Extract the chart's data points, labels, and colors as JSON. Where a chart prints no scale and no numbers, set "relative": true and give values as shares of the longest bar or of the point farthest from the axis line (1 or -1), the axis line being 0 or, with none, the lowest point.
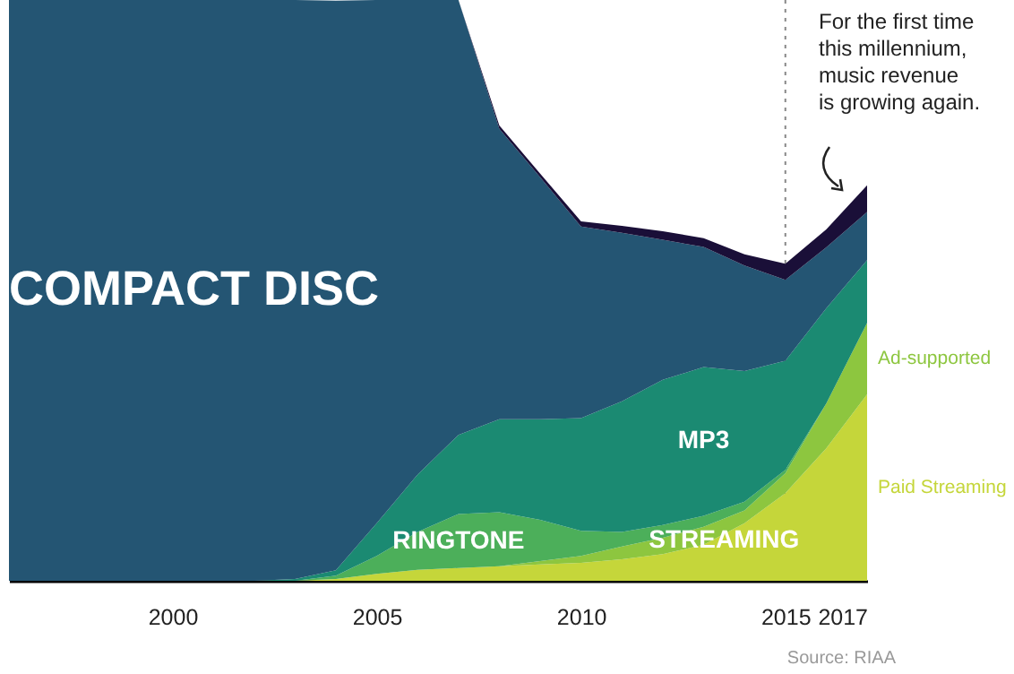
{
  "chart_data": {
    "type": "area",
    "stacked": true,
    "relative": true,
    "x": [
      1996,
      1997,
      1998,
      1999,
      2000,
      2001,
      2002,
      2003,
      2004,
      2005,
      2006,
      2007,
      2008,
      2009,
      2010,
      2011,
      2012,
      2013,
      2014,
      2015,
      2016,
      2017
    ],
    "xlim": [
      1996,
      2017
    ],
    "xticks": [
      2000,
      2005,
      2010,
      2015,
      2017
    ],
    "series": [
      {
        "name": "Paid Streaming",
        "color": "#c5d63a",
        "values": [
          null,
          null,
          null,
          null,
          null,
          null,
          null,
          0,
          0.003,
          0.012,
          0.019,
          0.022,
          0.025,
          0.028,
          0.031,
          0.037,
          0.046,
          0.062,
          0.099,
          0.151,
          0.228,
          0.321
        ]
      },
      {
        "name": "Ad-supported",
        "color": "#8dc63f",
        "values": [
          null,
          null,
          null,
          null,
          null,
          null,
          null,
          null,
          null,
          null,
          null,
          null,
          0,
          0.006,
          0.012,
          0.022,
          0.028,
          0.031,
          0.022,
          0.034,
          0.077,
          0.123
        ]
      },
      {
        "name": "RINGTONE",
        "color": "#4caf5a",
        "values": [
          null,
          null,
          null,
          null,
          null,
          null,
          null,
          0,
          0.006,
          0.031,
          0.065,
          0.093,
          0.093,
          0.071,
          0.043,
          0.025,
          0.022,
          0.019,
          0.015,
          0.006,
          0,
          null
        ]
      },
      {
        "name": "MP3",
        "color": "#1b8a72",
        "values": [
          null,
          null,
          null,
          null,
          null,
          null,
          0,
          0.003,
          0.009,
          0.056,
          0.099,
          0.136,
          0.16,
          0.173,
          0.194,
          0.225,
          0.25,
          0.256,
          0.225,
          0.188,
          0.164,
          0.108
        ]
      },
      {
        "name": "COMPACT DISC",
        "color": "#245573",
        "values": [
          1,
          1,
          1,
          1,
          1,
          1,
          1,
          0.997,
          0.981,
          0.901,
          0.817,
          0.749,
          0.5,
          0.417,
          0.33,
          0.29,
          0.241,
          0.207,
          0.182,
          0.139,
          0.105,
          0.083
        ]
      },
      {
        "color": "#1a0f38",
        "values": [
          null,
          null,
          null,
          null,
          null,
          null,
          null,
          null,
          null,
          null,
          null,
          0,
          0.006,
          0.006,
          0.009,
          0.012,
          0.015,
          0.015,
          0.019,
          0.028,
          0.031,
          0.046
        ]
      }
    ],
    "ref_lines": [
      {
        "axis": "x",
        "value": 2015,
        "color": "#888888",
        "line_style": "dotted"
      }
    ],
    "annotations": [
      {
        "text": "STREAMING",
        "x": 2013.5,
        "y": 0.07
      },
      "For the first time\nthis millennium,\nmusic revenue\nis growing again.",
      "Source: RIAA"
    ]
  }
}
